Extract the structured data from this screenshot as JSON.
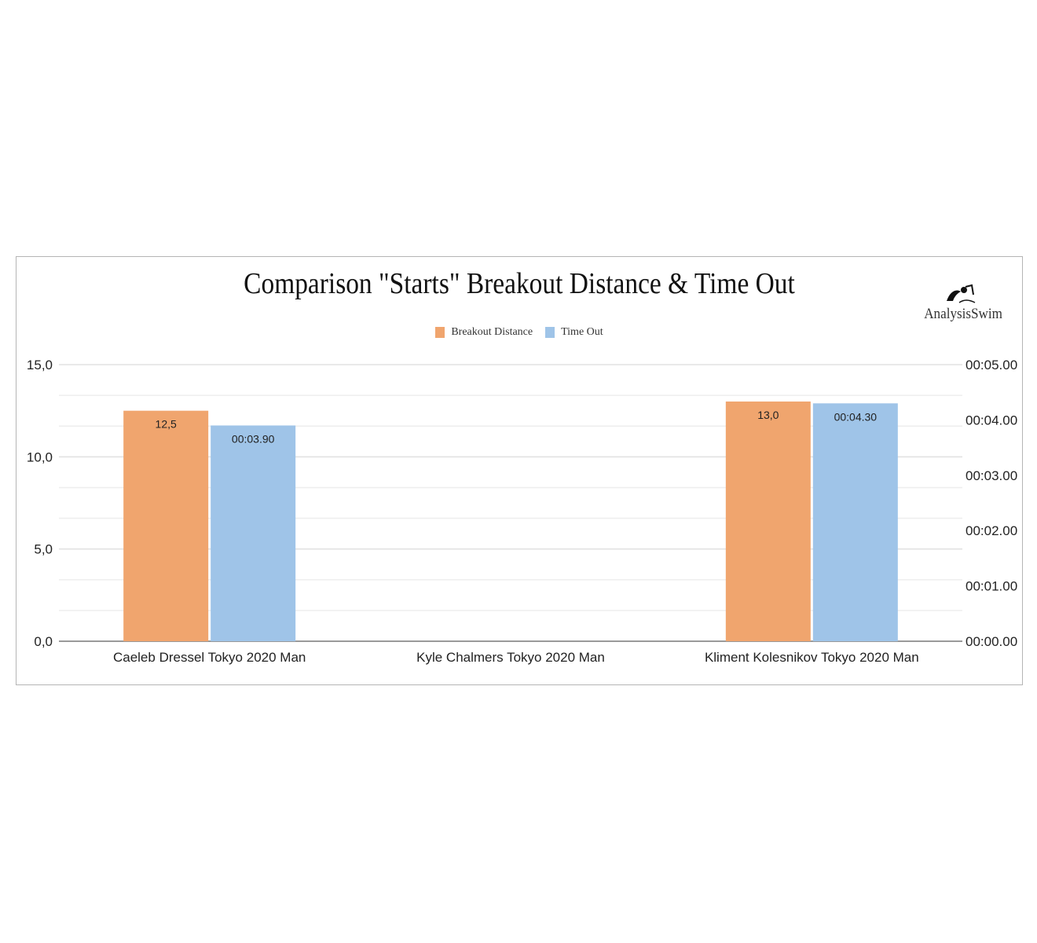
{
  "chart_data": {
    "type": "bar",
    "title": "Comparison \"Starts\" Breakout Distance & Time Out",
    "categories": [
      "Caeleb Dressel Tokyo 2020 Man",
      "Kyle Chalmers Tokyo 2020 Man",
      "Kliment Kolesnikov Tokyo 2020 Man"
    ],
    "series": [
      {
        "name": "Breakout Distance",
        "axis": "left",
        "color": "#f0a56e",
        "values": [
          12.5,
          null,
          13.0
        ],
        "labels": [
          "12,5",
          "",
          "13,0"
        ]
      },
      {
        "name": "Time Out",
        "axis": "right",
        "color": "#9fc4e8",
        "values": [
          3.9,
          null,
          4.3
        ],
        "labels": [
          "00:03.90",
          "",
          "00:04.30"
        ]
      }
    ],
    "y_left": {
      "range": [
        0,
        15
      ],
      "ticks": [
        0,
        5,
        10,
        15
      ],
      "tick_labels": [
        "0,0",
        "5,0",
        "10,0",
        "15,0"
      ]
    },
    "y_right": {
      "range": [
        0,
        5
      ],
      "ticks": [
        0,
        1,
        2,
        3,
        4,
        5
      ],
      "tick_labels": [
        "00:00.00",
        "00:01.00",
        "00:02.00",
        "00:03.00",
        "00:04.00",
        "00:05.00"
      ]
    },
    "grid": true,
    "legend_position": "top-center"
  },
  "logo": {
    "text": "AnalysisSwim",
    "icon": "swimmer-icon"
  }
}
